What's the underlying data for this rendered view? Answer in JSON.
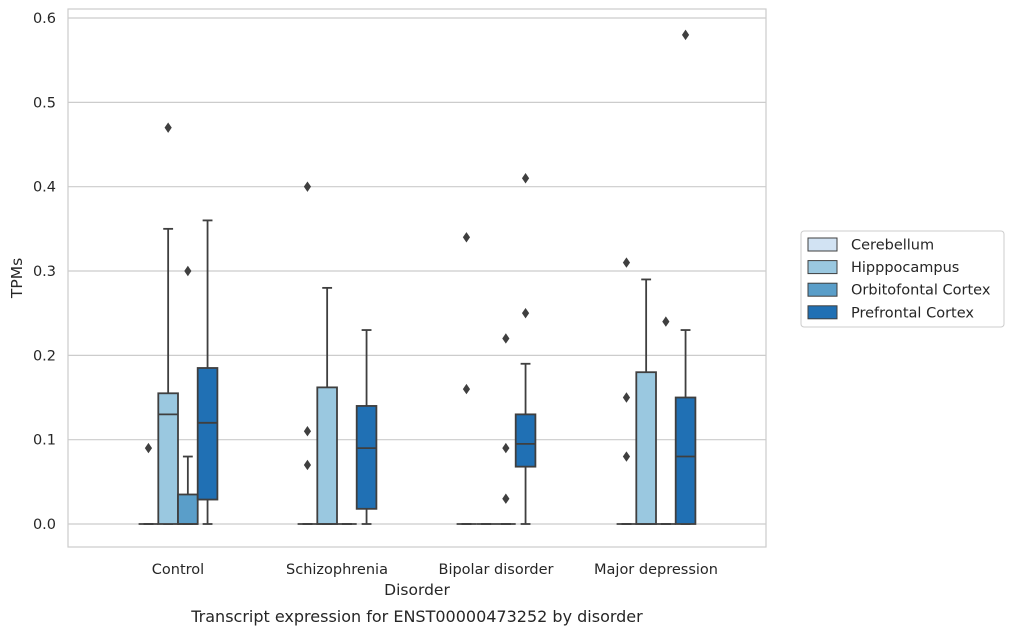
{
  "chart_data": {
    "type": "box",
    "caption": "Transcript expression for ENST00000473252 by disorder",
    "xlabel": "Disorder",
    "ylabel": "TPMs",
    "ylim": [
      -0.028,
      0.612
    ],
    "yticks": [
      0.0,
      0.1,
      0.2,
      0.3,
      0.4,
      0.5,
      0.6
    ],
    "ytick_labels": [
      "0.0",
      "0.1",
      "0.2",
      "0.3",
      "0.4",
      "0.5",
      "0.6"
    ],
    "grid": "horizontal",
    "legend_position": "right",
    "categories": [
      "Control",
      "Schizophrenia",
      "Bipolar disorder",
      "Major depression"
    ],
    "series": [
      {
        "name": "Cerebellum",
        "color": "#d2e3f3",
        "boxes": [
          {
            "q1": 0,
            "median": 0,
            "q3": 0,
            "whislo": 0,
            "whishi": 0,
            "fliers": [
              0.09
            ]
          },
          {
            "q1": 0,
            "median": 0,
            "q3": 0,
            "whislo": 0,
            "whishi": 0,
            "fliers": [
              0.07,
              0.11,
              0.4
            ]
          },
          {
            "q1": 0,
            "median": 0,
            "q3": 0,
            "whislo": 0,
            "whishi": 0,
            "fliers": [
              0.16,
              0.34
            ]
          },
          {
            "q1": 0,
            "median": 0,
            "q3": 0,
            "whislo": 0,
            "whishi": 0,
            "fliers": [
              0.08,
              0.15,
              0.31
            ]
          }
        ]
      },
      {
        "name": "Hipppocampus",
        "color": "#9ac8e0",
        "boxes": [
          {
            "q1": 0,
            "median": 0.13,
            "q3": 0.155,
            "whislo": 0,
            "whishi": 0.35,
            "fliers": [
              0.47
            ]
          },
          {
            "q1": 0,
            "median": 0,
            "q3": 0.162,
            "whislo": 0,
            "whishi": 0.28,
            "fliers": []
          },
          {
            "q1": 0,
            "median": 0,
            "q3": 0,
            "whislo": 0,
            "whishi": 0,
            "fliers": []
          },
          {
            "q1": 0,
            "median": 0,
            "q3": 0.18,
            "whislo": 0,
            "whishi": 0.29,
            "fliers": []
          }
        ]
      },
      {
        "name": "Orbitofontal Cortex",
        "color": "#5a9ec9",
        "boxes": [
          {
            "q1": 0,
            "median": 0,
            "q3": 0.035,
            "whislo": 0,
            "whishi": 0.08,
            "fliers": [
              0.3
            ]
          },
          {
            "q1": 0,
            "median": 0,
            "q3": 0,
            "whislo": 0,
            "whishi": 0,
            "fliers": []
          },
          {
            "q1": 0,
            "median": 0,
            "q3": 0,
            "whislo": 0,
            "whishi": 0,
            "fliers": [
              0.03,
              0.09,
              0.22
            ]
          },
          {
            "q1": 0,
            "median": 0,
            "q3": 0,
            "whislo": 0,
            "whishi": 0,
            "fliers": [
              0.24
            ]
          }
        ]
      },
      {
        "name": "Prefrontal Cortex",
        "color": "#2070b4",
        "boxes": [
          {
            "q1": 0.029,
            "median": 0.12,
            "q3": 0.185,
            "whislo": 0,
            "whishi": 0.36,
            "fliers": []
          },
          {
            "q1": 0.018,
            "median": 0.09,
            "q3": 0.14,
            "whislo": 0,
            "whishi": 0.23,
            "fliers": []
          },
          {
            "q1": 0.068,
            "median": 0.095,
            "q3": 0.13,
            "whislo": 0,
            "whishi": 0.19,
            "fliers": [
              0.25,
              0.41
            ]
          },
          {
            "q1": 0,
            "median": 0.08,
            "q3": 0.15,
            "whislo": 0,
            "whishi": 0.23,
            "fliers": [
              0.58
            ]
          }
        ]
      }
    ],
    "colors": {
      "edge": "#3f3f3f",
      "grid": "#cccccc",
      "frame": "#cccccc",
      "flier": "#3f3f3f"
    }
  }
}
